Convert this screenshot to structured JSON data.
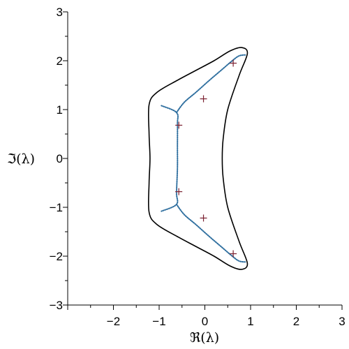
{
  "chart_data": {
    "type": "scatter",
    "title": "",
    "xlabel": "ℜ(λ)",
    "ylabel": "ℑ(λ)",
    "xlim": [
      -3,
      3
    ],
    "ylim": [
      -3,
      3
    ],
    "xticks": [
      -2,
      -1,
      0,
      1,
      2,
      3
    ],
    "yticks": [
      -3,
      -2,
      -1,
      0,
      1,
      2,
      3
    ],
    "grid": false,
    "colors": {
      "boundary": "#000000",
      "locus": "#2f6f9f",
      "eigen": "#7a1f2f"
    },
    "series": [
      {
        "kind": "closed-curve",
        "points": [
          [
            -1.05,
            1.35
          ],
          [
            -0.6,
            1.6
          ],
          [
            -0.2,
            1.8
          ],
          [
            0.2,
            2.0
          ],
          [
            0.55,
            2.2
          ],
          [
            0.8,
            2.27
          ],
          [
            0.93,
            2.15
          ],
          [
            0.75,
            1.7
          ],
          [
            0.5,
            1.0
          ],
          [
            0.4,
            0.4
          ],
          [
            0.38,
            0
          ],
          [
            0.4,
            -0.4
          ],
          [
            0.5,
            -1.0
          ],
          [
            0.75,
            -1.7
          ],
          [
            0.93,
            -2.15
          ],
          [
            0.8,
            -2.27
          ],
          [
            0.55,
            -2.2
          ],
          [
            0.2,
            -2.0
          ],
          [
            -0.2,
            -1.8
          ],
          [
            -0.6,
            -1.6
          ],
          [
            -1.05,
            -1.35
          ],
          [
            -1.22,
            -1.1
          ],
          [
            -1.22,
            -0.5
          ],
          [
            -1.2,
            0
          ],
          [
            -1.22,
            0.5
          ],
          [
            -1.22,
            1.1
          ]
        ]
      },
      {
        "kind": "dotted-path",
        "points": [
          [
            -0.95,
            1.08
          ],
          [
            -0.62,
            0.94
          ],
          [
            -0.6,
            0.7
          ],
          [
            -0.6,
            0.2
          ],
          [
            -0.6,
            -0.2
          ],
          [
            -0.62,
            -0.7
          ],
          [
            -0.62,
            -0.94
          ],
          [
            -0.95,
            -1.08
          ]
        ]
      },
      {
        "kind": "dotted-path",
        "points": [
          [
            -0.62,
            0.94
          ],
          [
            -0.45,
            1.15
          ],
          [
            -0.2,
            1.35
          ],
          [
            0.1,
            1.6
          ],
          [
            0.35,
            1.8
          ],
          [
            0.6,
            2.0
          ],
          [
            0.75,
            2.1
          ],
          [
            0.9,
            2.12
          ]
        ]
      },
      {
        "kind": "dotted-path",
        "points": [
          [
            -0.62,
            -0.94
          ],
          [
            -0.45,
            -1.15
          ],
          [
            -0.2,
            -1.35
          ],
          [
            0.1,
            -1.6
          ],
          [
            0.35,
            -1.8
          ],
          [
            0.6,
            -2.0
          ],
          [
            0.75,
            -2.1
          ],
          [
            0.9,
            -2.12
          ]
        ]
      },
      {
        "kind": "markers",
        "marker": "+",
        "points": [
          [
            0.62,
            1.95
          ],
          [
            -0.03,
            1.22
          ],
          [
            -0.57,
            0.68
          ],
          [
            -0.57,
            -0.68
          ],
          [
            -0.03,
            -1.22
          ],
          [
            0.62,
            -1.95
          ]
        ]
      }
    ]
  }
}
